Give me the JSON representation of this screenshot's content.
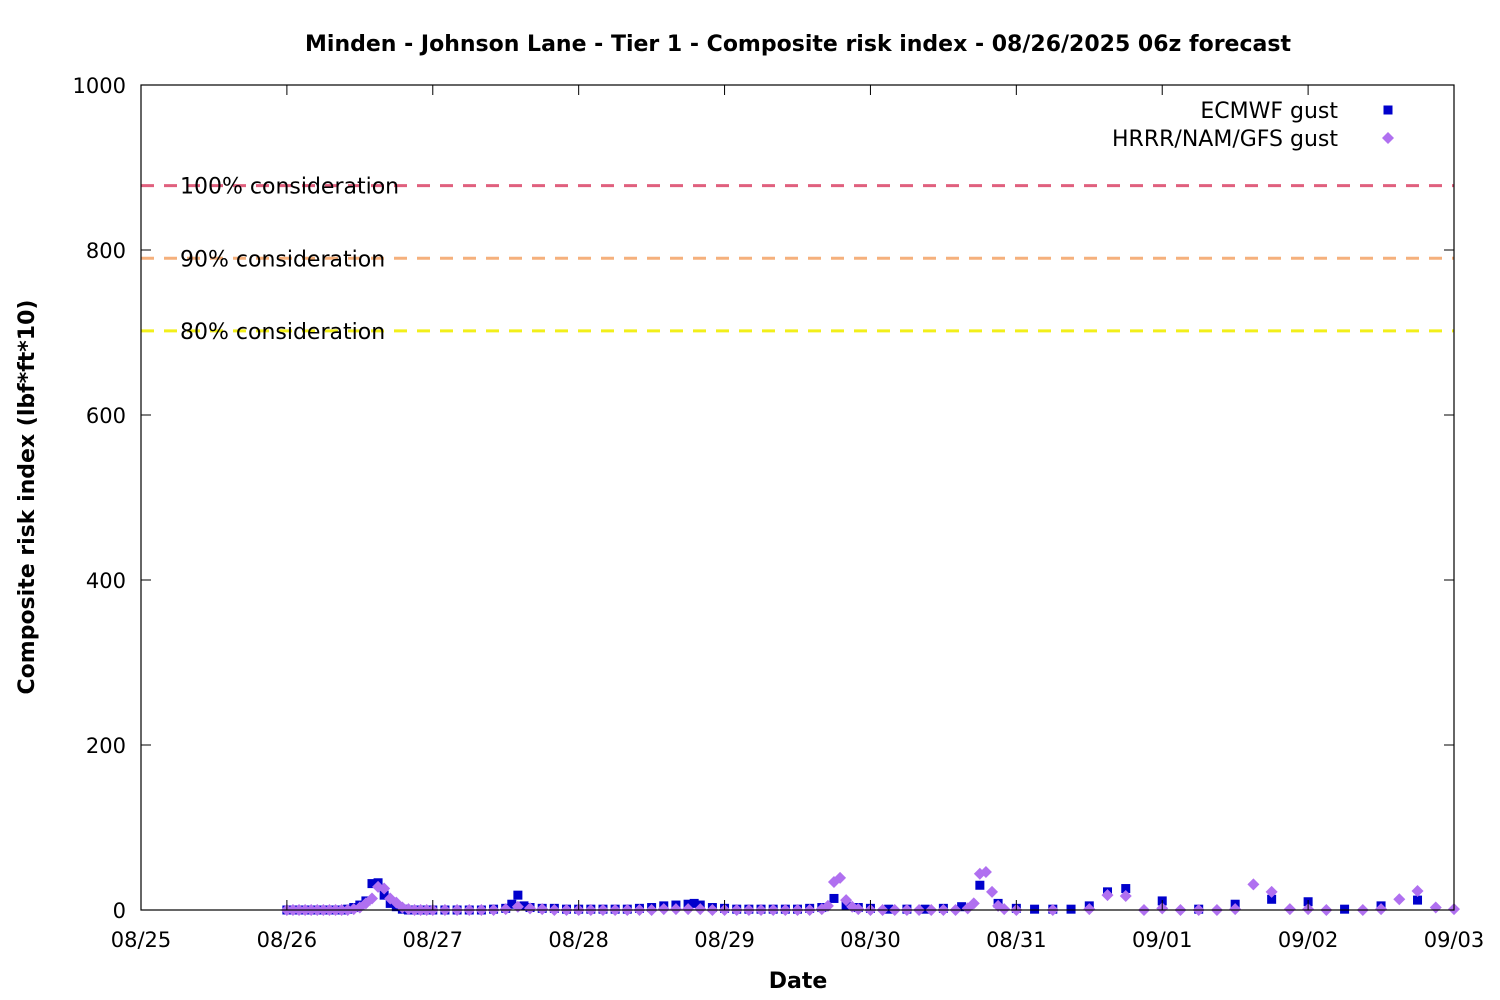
{
  "chart_data": {
    "type": "scatter",
    "title": "Minden - Johnson Lane - Tier 1 - Composite risk index - 08/26/2025 06z forecast",
    "xlabel": "Date",
    "ylabel": "Composite risk index (lbf*ft*10)",
    "x_unit": "days",
    "xlim": [
      "08/25 00:00",
      "09/03 00:00"
    ],
    "ylim": [
      0,
      1000
    ],
    "x_ticks": [
      "08/25",
      "08/26",
      "08/27",
      "08/28",
      "08/29",
      "08/30",
      "08/31",
      "09/01",
      "09/02",
      "09/03"
    ],
    "y_ticks": [
      "0",
      "200",
      "400",
      "600",
      "800",
      "1000"
    ],
    "legend_position": "top-right",
    "grid": false,
    "thresholds": [
      {
        "label": "100% consideration",
        "value": 878,
        "color": "#e0607e"
      },
      {
        "label": "90% consideration",
        "value": 790,
        "color": "#f5b07c"
      },
      {
        "label": "80% consideration",
        "value": 702,
        "color": "#f2ef1a"
      }
    ],
    "series": [
      {
        "name": "ECMWF gust",
        "color": "#0000cc",
        "marker": "square",
        "points": [
          [
            "08/26 00:00",
            0
          ],
          [
            "08/26 01:00",
            0
          ],
          [
            "08/26 02:00",
            0
          ],
          [
            "08/26 03:00",
            0
          ],
          [
            "08/26 04:00",
            0
          ],
          [
            "08/26 05:00",
            0
          ],
          [
            "08/26 06:00",
            0
          ],
          [
            "08/26 07:00",
            0
          ],
          [
            "08/26 08:00",
            0
          ],
          [
            "08/26 09:00",
            0
          ],
          [
            "08/26 10:00",
            1
          ],
          [
            "08/26 11:00",
            3
          ],
          [
            "08/26 12:00",
            6
          ],
          [
            "08/26 13:00",
            11
          ],
          [
            "08/26 14:00",
            32
          ],
          [
            "08/26 15:00",
            33
          ],
          [
            "08/26 16:00",
            18
          ],
          [
            "08/26 17:00",
            8
          ],
          [
            "08/26 18:00",
            4
          ],
          [
            "08/26 19:00",
            1
          ],
          [
            "08/26 20:00",
            0
          ],
          [
            "08/26 21:00",
            0
          ],
          [
            "08/26 22:00",
            0
          ],
          [
            "08/26 23:00",
            0
          ],
          [
            "08/27 00:00",
            0
          ],
          [
            "08/27 02:00",
            0
          ],
          [
            "08/27 04:00",
            0
          ],
          [
            "08/27 06:00",
            0
          ],
          [
            "08/27 08:00",
            0
          ],
          [
            "08/27 10:00",
            1
          ],
          [
            "08/27 12:00",
            2
          ],
          [
            "08/27 13:00",
            7
          ],
          [
            "08/27 14:00",
            18
          ],
          [
            "08/27 15:00",
            5
          ],
          [
            "08/27 16:00",
            3
          ],
          [
            "08/27 18:00",
            2
          ],
          [
            "08/27 20:00",
            2
          ],
          [
            "08/27 22:00",
            1
          ],
          [
            "08/28 00:00",
            1
          ],
          [
            "08/28 02:00",
            1
          ],
          [
            "08/28 04:00",
            1
          ],
          [
            "08/28 06:00",
            1
          ],
          [
            "08/28 08:00",
            1
          ],
          [
            "08/28 10:00",
            2
          ],
          [
            "08/28 12:00",
            3
          ],
          [
            "08/28 14:00",
            5
          ],
          [
            "08/28 16:00",
            6
          ],
          [
            "08/28 18:00",
            7
          ],
          [
            "08/28 19:00",
            8
          ],
          [
            "08/28 20:00",
            6
          ],
          [
            "08/28 22:00",
            3
          ],
          [
            "08/29 00:00",
            2
          ],
          [
            "08/29 02:00",
            1
          ],
          [
            "08/29 04:00",
            1
          ],
          [
            "08/29 06:00",
            1
          ],
          [
            "08/29 08:00",
            1
          ],
          [
            "08/29 10:00",
            1
          ],
          [
            "08/29 12:00",
            1
          ],
          [
            "08/29 14:00",
            2
          ],
          [
            "08/29 16:00",
            3
          ],
          [
            "08/29 18:00",
            14
          ],
          [
            "08/29 20:00",
            5
          ],
          [
            "08/29 22:00",
            3
          ],
          [
            "08/30 00:00",
            2
          ],
          [
            "08/30 03:00",
            1
          ],
          [
            "08/30 06:00",
            1
          ],
          [
            "08/30 09:00",
            1
          ],
          [
            "08/30 12:00",
            2
          ],
          [
            "08/30 15:00",
            4
          ],
          [
            "08/30 18:00",
            30
          ],
          [
            "08/30 21:00",
            8
          ],
          [
            "08/31 00:00",
            2
          ],
          [
            "08/31 03:00",
            1
          ],
          [
            "08/31 06:00",
            1
          ],
          [
            "08/31 09:00",
            1
          ],
          [
            "08/31 12:00",
            5
          ],
          [
            "08/31 15:00",
            22
          ],
          [
            "08/31 18:00",
            26
          ],
          [
            "09/01 00:00",
            11
          ],
          [
            "09/01 06:00",
            1
          ],
          [
            "09/01 12:00",
            7
          ],
          [
            "09/01 18:00",
            13
          ],
          [
            "09/02 00:00",
            10
          ],
          [
            "09/02 06:00",
            1
          ],
          [
            "09/02 12:00",
            5
          ],
          [
            "09/02 18:00",
            12
          ]
        ]
      },
      {
        "name": "HRRR/NAM/GFS gust",
        "color": "#b070f0",
        "marker": "diamond",
        "points": [
          [
            "08/26 00:00",
            0
          ],
          [
            "08/26 01:00",
            0
          ],
          [
            "08/26 02:00",
            0
          ],
          [
            "08/26 03:00",
            0
          ],
          [
            "08/26 04:00",
            0
          ],
          [
            "08/26 05:00",
            0
          ],
          [
            "08/26 06:00",
            0
          ],
          [
            "08/26 07:00",
            0
          ],
          [
            "08/26 08:00",
            0
          ],
          [
            "08/26 09:00",
            0
          ],
          [
            "08/26 10:00",
            0
          ],
          [
            "08/26 11:00",
            1
          ],
          [
            "08/26 12:00",
            3
          ],
          [
            "08/26 13:00",
            8
          ],
          [
            "08/26 14:00",
            14
          ],
          [
            "08/26 15:00",
            28
          ],
          [
            "08/26 16:00",
            26
          ],
          [
            "08/26 17:00",
            14
          ],
          [
            "08/26 18:00",
            9
          ],
          [
            "08/26 19:00",
            3
          ],
          [
            "08/26 20:00",
            1
          ],
          [
            "08/26 21:00",
            0
          ],
          [
            "08/26 22:00",
            0
          ],
          [
            "08/26 23:00",
            0
          ],
          [
            "08/27 00:00",
            0
          ],
          [
            "08/27 02:00",
            0
          ],
          [
            "08/27 04:00",
            0
          ],
          [
            "08/27 06:00",
            0
          ],
          [
            "08/27 08:00",
            0
          ],
          [
            "08/27 10:00",
            0
          ],
          [
            "08/27 12:00",
            1
          ],
          [
            "08/27 14:00",
            4
          ],
          [
            "08/27 16:00",
            2
          ],
          [
            "08/27 18:00",
            1
          ],
          [
            "08/27 20:00",
            0
          ],
          [
            "08/27 22:00",
            0
          ],
          [
            "08/28 00:00",
            0
          ],
          [
            "08/28 02:00",
            0
          ],
          [
            "08/28 04:00",
            0
          ],
          [
            "08/28 06:00",
            0
          ],
          [
            "08/28 08:00",
            0
          ],
          [
            "08/28 10:00",
            0
          ],
          [
            "08/28 12:00",
            0
          ],
          [
            "08/28 14:00",
            1
          ],
          [
            "08/28 16:00",
            1
          ],
          [
            "08/28 18:00",
            1
          ],
          [
            "08/28 20:00",
            1
          ],
          [
            "08/28 22:00",
            0
          ],
          [
            "08/29 00:00",
            0
          ],
          [
            "08/29 02:00",
            0
          ],
          [
            "08/29 04:00",
            0
          ],
          [
            "08/29 06:00",
            0
          ],
          [
            "08/29 08:00",
            0
          ],
          [
            "08/29 10:00",
            0
          ],
          [
            "08/29 12:00",
            0
          ],
          [
            "08/29 14:00",
            0
          ],
          [
            "08/29 16:00",
            1
          ],
          [
            "08/29 17:00",
            5
          ],
          [
            "08/29 18:00",
            34
          ],
          [
            "08/29 19:00",
            39
          ],
          [
            "08/29 20:00",
            12
          ],
          [
            "08/29 21:00",
            4
          ],
          [
            "08/29 22:00",
            1
          ],
          [
            "08/30 00:00",
            0
          ],
          [
            "08/30 02:00",
            0
          ],
          [
            "08/30 04:00",
            0
          ],
          [
            "08/30 06:00",
            0
          ],
          [
            "08/30 08:00",
            0
          ],
          [
            "08/30 10:00",
            0
          ],
          [
            "08/30 12:00",
            0
          ],
          [
            "08/30 14:00",
            0
          ],
          [
            "08/30 16:00",
            2
          ],
          [
            "08/30 17:00",
            8
          ],
          [
            "08/30 18:00",
            44
          ],
          [
            "08/30 19:00",
            46
          ],
          [
            "08/30 20:00",
            22
          ],
          [
            "08/30 21:00",
            5
          ],
          [
            "08/30 22:00",
            1
          ],
          [
            "08/31 00:00",
            0
          ],
          [
            "08/31 06:00",
            0
          ],
          [
            "08/31 12:00",
            1
          ],
          [
            "08/31 15:00",
            18
          ],
          [
            "08/31 18:00",
            17
          ],
          [
            "08/31 21:00",
            0
          ],
          [
            "09/01 00:00",
            2
          ],
          [
            "09/01 03:00",
            0
          ],
          [
            "09/01 06:00",
            0
          ],
          [
            "09/01 09:00",
            0
          ],
          [
            "09/01 12:00",
            1
          ],
          [
            "09/01 15:00",
            31
          ],
          [
            "09/01 18:00",
            22
          ],
          [
            "09/01 21:00",
            1
          ],
          [
            "09/02 00:00",
            1
          ],
          [
            "09/02 03:00",
            0
          ],
          [
            "09/02 09:00",
            0
          ],
          [
            "09/02 12:00",
            1
          ],
          [
            "09/02 15:00",
            13
          ],
          [
            "09/02 18:00",
            23
          ],
          [
            "09/02 21:00",
            3
          ],
          [
            "09/03 00:00",
            1
          ]
        ]
      }
    ]
  }
}
